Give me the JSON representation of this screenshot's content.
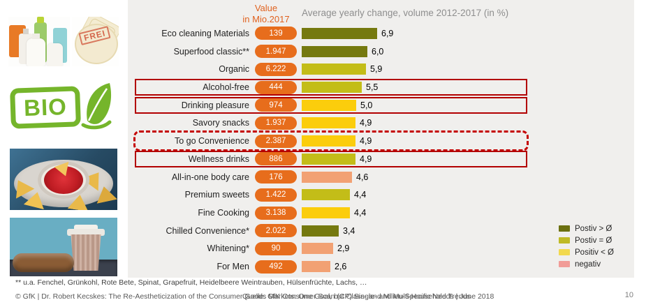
{
  "header": {
    "value_label_line1": "Value",
    "value_label_line2": "in Mio.2017",
    "title": "Average yearly change, volume 2012-2017 (in %)"
  },
  "chart_data": {
    "type": "bar",
    "orientation": "horizontal",
    "title": "Average yearly change, volume 2012-2017 (in %)",
    "value_column_header": "Value in Mio.2017",
    "categories": [
      "Eco cleaning Materials",
      "Superfood classic**",
      "Organic",
      "Alcohol-free",
      "Drinking pleasure",
      "Savory snacks",
      "To go Convenience",
      "Wellness drinks",
      "All-in-one body care",
      "Premium sweets",
      "Fine Cooking",
      "Chilled Convenience*",
      "Whitening*",
      "For Men"
    ],
    "values_mio_2017": [
      "139",
      "1.947",
      "6.222",
      "444",
      "974",
      "1.937",
      "2.387",
      "886",
      "176",
      "1.422",
      "3.138",
      "2.022",
      "90",
      "492"
    ],
    "pct_values": [
      6.9,
      6.0,
      5.9,
      5.5,
      5.0,
      4.9,
      4.9,
      4.9,
      4.6,
      4.4,
      4.4,
      3.4,
      2.9,
      2.6
    ],
    "pct_labels": [
      "6,9",
      "6,0",
      "5,9",
      "5,5",
      "5,0",
      "4,9",
      "4,9",
      "4,9",
      "4,6",
      "4,4",
      "4,4",
      "3,4",
      "2,9",
      "2,6"
    ],
    "tiers": [
      "pos_gt",
      "pos_gt",
      "pos_eq",
      "pos_eq",
      "pos_lt",
      "pos_lt",
      "pos_lt",
      "pos_eq",
      "neg",
      "pos_eq",
      "pos_lt",
      "pos_gt",
      "neg",
      "neg"
    ],
    "colors": {
      "pos_gt": "#75790f",
      "pos_eq": "#c3bd18",
      "pos_lt": "#fbcd0c",
      "neg": "#f2a173",
      "badge": "#e76d1c",
      "highlight": "#b20000"
    },
    "xlim": [
      0,
      7.2
    ],
    "highlights": [
      {
        "category": "Alcohol-free",
        "style": "solid"
      },
      {
        "category": "Drinking pleasure",
        "style": "solid"
      },
      {
        "category": "To go Convenience",
        "style": "dashed"
      },
      {
        "category": "Wellness drinks",
        "style": "solid"
      }
    ],
    "legend": [
      {
        "label": "Postiv > Ø",
        "color": "#6b7010"
      },
      {
        "label": "Postiv = Ø",
        "color": "#bfba25"
      },
      {
        "label": "Positiv < Ø",
        "color": "#f2d94e"
      },
      {
        "label": "negativ",
        "color": "#f19c97"
      }
    ],
    "legend_position": "right"
  },
  "images": {
    "frei_stamp_text": "FREI",
    "bio_logo_text": "BIO"
  },
  "footer": {
    "footnote": "** u.a. Fenchel, Grünkohl, Rote Bete, Spinat, Grapefruit, Heidelbeere Weintrauben, Hülsenfrüchte, Lachs, …",
    "copyright": "© GfK | Dr. Robert Kecskes: The Re-Aestheticization of the Consumer Goods Markets: One Goal, but Class- and Milieu-Specific Needs | June 2018",
    "source_overlay": "Quelle: GfK Consumer Scan (CP) Single- and Multi-Household Trends",
    "page_number": "10"
  }
}
